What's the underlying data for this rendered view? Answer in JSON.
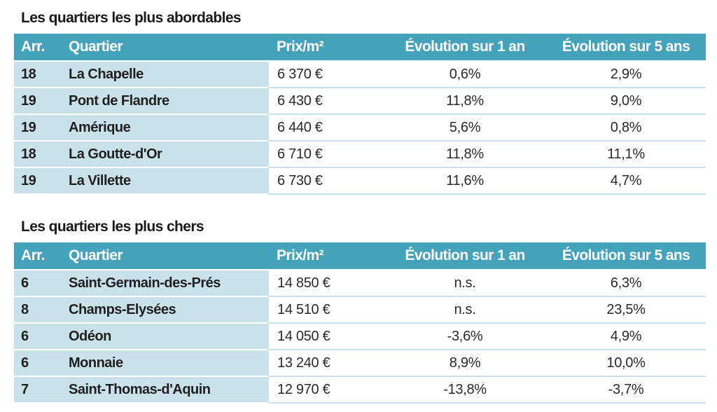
{
  "headers": {
    "arr": "Arr.",
    "quartier": "Quartier",
    "prix": "Prix/m²",
    "evol_1an": "Évolution sur 1 an",
    "evol_5ans": "Évolution sur 5 ans"
  },
  "affordable": {
    "title": "Les quartiers les plus abordables",
    "rows": [
      {
        "arr": "18",
        "quartier": "La Chapelle",
        "prix": "6 370 €",
        "evol_1an": "0,6%",
        "evol_5ans": "2,9%"
      },
      {
        "arr": "19",
        "quartier": "Pont de Flandre",
        "prix": "6 430 €",
        "evol_1an": "11,8%",
        "evol_5ans": "9,0%"
      },
      {
        "arr": "19",
        "quartier": "Amérique",
        "prix": "6 440 €",
        "evol_1an": "5,6%",
        "evol_5ans": "0,8%"
      },
      {
        "arr": "18",
        "quartier": "La Goutte-d'Or",
        "prix": "6 710 €",
        "evol_1an": "11,8%",
        "evol_5ans": "11,1%"
      },
      {
        "arr": "19",
        "quartier": "La Villette",
        "prix": "6 730 €",
        "evol_1an": "11,6%",
        "evol_5ans": "4,7%"
      }
    ]
  },
  "expensive": {
    "title": "Les quartiers les plus chers",
    "rows": [
      {
        "arr": "6",
        "quartier": "Saint-Germain-des-Prés",
        "prix": "14 850 €",
        "evol_1an": "n.s.",
        "evol_5ans": "6,3%"
      },
      {
        "arr": "8",
        "quartier": "Champs-Elysées",
        "prix": "14 510 €",
        "evol_1an": "n.s.",
        "evol_5ans": "23,5%"
      },
      {
        "arr": "6",
        "quartier": "Odéon",
        "prix": "14 050 €",
        "evol_1an": "-3,6%",
        "evol_5ans": "4,9%"
      },
      {
        "arr": "6",
        "quartier": "Monnaie",
        "prix": "13 240 €",
        "evol_1an": "8,9%",
        "evol_5ans": "10,0%"
      },
      {
        "arr": "7",
        "quartier": "Saint-Thomas-d'Aquin",
        "prix": "12 970 €",
        "evol_1an": "-13,8%",
        "evol_5ans": "-3,7%"
      }
    ]
  },
  "colors": {
    "header_bg": "#44a2bb",
    "label_bg": "#c9e2ea",
    "header_text": "#ffffff"
  }
}
